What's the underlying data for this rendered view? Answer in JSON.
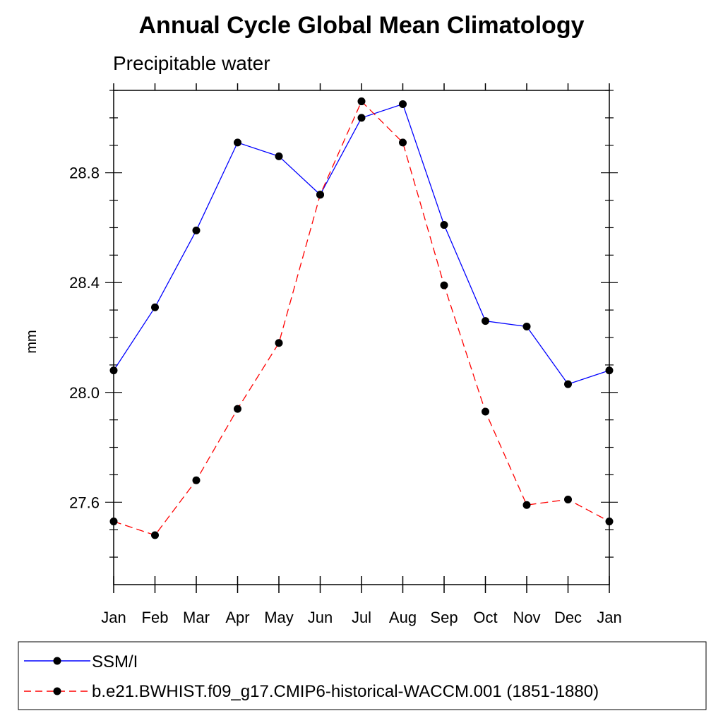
{
  "chart_data": {
    "type": "line",
    "title": "Annual Cycle Global Mean Climatology",
    "subtitle": "Precipitable water",
    "xlabel": "",
    "ylabel": "mm",
    "categories": [
      "Jan",
      "Feb",
      "Mar",
      "Apr",
      "May",
      "Jun",
      "Jul",
      "Aug",
      "Sep",
      "Oct",
      "Nov",
      "Dec",
      "Jan"
    ],
    "ylim": [
      27.3,
      29.1
    ],
    "yticks": [
      27.6,
      28.0,
      28.4,
      28.8
    ],
    "ytick_labels": [
      "27.6",
      "28.0",
      "28.4",
      "28.8"
    ],
    "series": [
      {
        "name": "SSM/I",
        "color": "#0000ff",
        "dash": "solid",
        "values": [
          28.08,
          28.31,
          28.59,
          28.91,
          28.86,
          28.72,
          29.0,
          29.05,
          28.61,
          28.26,
          28.24,
          28.03,
          28.08
        ]
      },
      {
        "name": "b.e21.BWHIST.f09_g17.CMIP6-historical-WACCM.001 (1851-1880)",
        "color": "#ff0000",
        "dash": "dashed",
        "values": [
          27.53,
          27.48,
          27.68,
          27.94,
          28.18,
          28.72,
          29.06,
          28.91,
          28.39,
          27.93,
          27.59,
          27.61,
          27.53
        ]
      }
    ],
    "legend_position": "bottom"
  }
}
